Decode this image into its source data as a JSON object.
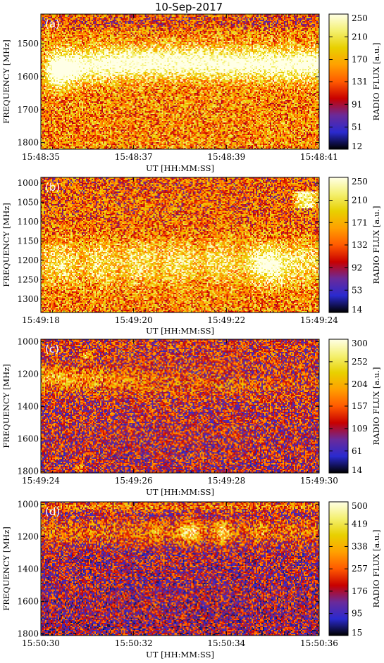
{
  "title": "10-Sep-2017",
  "chart_data": [
    {
      "type": "heatmap",
      "panel_label": "(a)",
      "xlabel": "UT [HH:MM:SS]",
      "ylabel": "FREQUENCY [MHz]",
      "colorbar_label": "RADIO FLUX [a.u.]",
      "x_ticks": [
        "15:48:35",
        "15:48:37",
        "15:48:39",
        "15:48:41"
      ],
      "y_ticks": [
        1500,
        1600,
        1700,
        1800
      ],
      "ylim": [
        1820,
        1410
      ],
      "colorbar_ticks": [
        12,
        51,
        91,
        131,
        170,
        210,
        250
      ],
      "colorbar_range": [
        12,
        250
      ]
    },
    {
      "type": "heatmap",
      "panel_label": "(b)",
      "xlabel": "UT [HH:MM:SS]",
      "ylabel": "FREQUENCY [MHz]",
      "colorbar_label": "RADIO FLUX [a.u.]",
      "x_ticks": [
        "15:49:18",
        "15:49:20",
        "15:49:22",
        "15:49:24"
      ],
      "y_ticks": [
        1000,
        1050,
        1100,
        1150,
        1200,
        1250,
        1300
      ],
      "ylim": [
        1335,
        985
      ],
      "colorbar_ticks": [
        14,
        53,
        92,
        132,
        171,
        210,
        250
      ],
      "colorbar_range": [
        14,
        250
      ]
    },
    {
      "type": "heatmap",
      "panel_label": "(c)",
      "xlabel": "UT [HH:MM:SS]",
      "ylabel": "FREQUENCY [MHz]",
      "colorbar_label": "RADIO FLUX [a.u.]",
      "x_ticks": [
        "15:49:24",
        "15:49:26",
        "15:49:28",
        "15:49:30"
      ],
      "y_ticks": [
        1000,
        1200,
        1400,
        1600,
        1800
      ],
      "ylim": [
        1810,
        985
      ],
      "colorbar_ticks": [
        14,
        61,
        109,
        157,
        204,
        252,
        300
      ],
      "colorbar_range": [
        14,
        300
      ]
    },
    {
      "type": "heatmap",
      "panel_label": "(d)",
      "xlabel": "UT [HH:MM:SS]",
      "ylabel": "FREQUENCY [MHz]",
      "colorbar_label": "RADIO FLUX [a.u.]",
      "x_ticks": [
        "15:50:30",
        "15:50:32",
        "15:50:34",
        "15:50:36"
      ],
      "y_ticks": [
        1000,
        1200,
        1400,
        1600,
        1800
      ],
      "ylim": [
        1810,
        985
      ],
      "colorbar_ticks": [
        15,
        95,
        176,
        257,
        338,
        419,
        500
      ],
      "colorbar_range": [
        15,
        500
      ]
    }
  ],
  "colormap_stops": [
    "#000000",
    "#2a2acf",
    "#6a2a9a",
    "#c80000",
    "#ff5a00",
    "#ffa000",
    "#e8d000",
    "#f4f070",
    "#ffffe6"
  ]
}
